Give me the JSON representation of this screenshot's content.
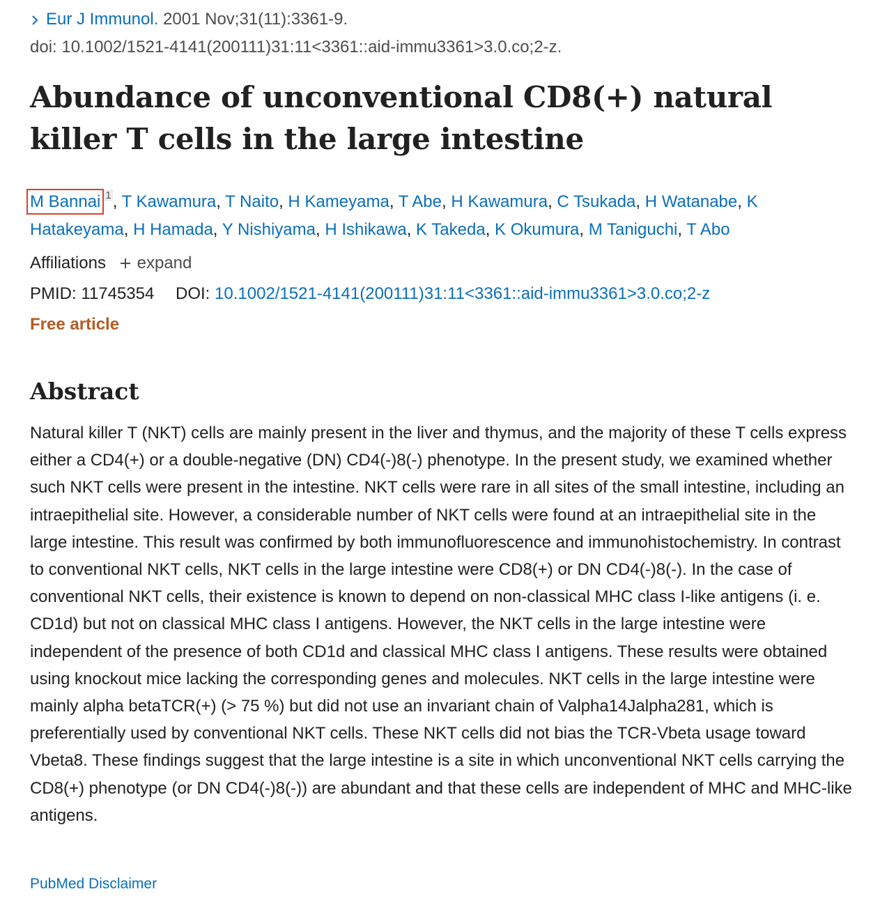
{
  "citation": {
    "journal": "Eur J Immunol.",
    "details": "2001 Nov;31(11):3361-9.",
    "doi_line": "doi: 10.1002/1521-4141(200111)31:11<3361::aid-immu3361>3.0.co;2-z."
  },
  "article_title": "Abundance of unconventional CD8(+) natural killer T cells in the large intestine",
  "authors": [
    {
      "name": "M Bannai",
      "affiliation_ref": "1"
    },
    {
      "name": "T Kawamura"
    },
    {
      "name": "T Naito"
    },
    {
      "name": "H Kameyama"
    },
    {
      "name": "T Abe"
    },
    {
      "name": "H Kawamura"
    },
    {
      "name": "C Tsukada"
    },
    {
      "name": "H Watanabe"
    },
    {
      "name": "K Hatakeyama"
    },
    {
      "name": "H Hamada"
    },
    {
      "name": "Y Nishiyama"
    },
    {
      "name": "H Ishikawa"
    },
    {
      "name": "K Takeda"
    },
    {
      "name": "K Okumura"
    },
    {
      "name": "M Taniguchi"
    },
    {
      "name": "T Abo"
    }
  ],
  "author_separator": ", ",
  "affiliations": {
    "label": "Affiliations",
    "expand_label": "expand"
  },
  "identifiers": {
    "pmid_label": "PMID:",
    "pmid": "11745354",
    "doi_label": "DOI:",
    "doi": "10.1002/1521-4141(200111)31:11<3361::aid-immu3361>3.0.co;2-z"
  },
  "free_article_label": "Free article",
  "abstract": {
    "heading": "Abstract",
    "text": "Natural killer T (NKT) cells are mainly present in the liver and thymus, and the majority of these T cells express either a CD4(+) or a double-negative (DN) CD4(-)8(-) phenotype. In the present study, we examined whether such NKT cells were present in the intestine. NKT cells were rare in all sites of the small intestine, including an intraepithelial site. However, a considerable number of NKT cells were found at an intraepithelial site in the large intestine. This result was confirmed by both immunofluorescence and immunohistochemistry. In contrast to conventional NKT cells, NKT cells in the large intestine were CD8(+) or DN CD4(-)8(-). In the case of conventional NKT cells, their existence is known to depend on non-classical MHC class I-like antigens (i. e. CD1d) but not on classical MHC class I antigens. However, the NKT cells in the large intestine were independent of the presence of both CD1d and classical MHC class I antigens. These results were obtained using knockout mice lacking the corresponding genes and molecules. NKT cells in the large intestine were mainly alpha betaTCR(+) (> 75 %) but did not use an invariant chain of Valpha14Jalpha281, which is preferentially used by conventional NKT cells. These NKT cells did not bias the TCR-Vbeta usage toward Vbeta8. These findings suggest that the large intestine is a site in which unconventional NKT cells carrying the CD8(+) phenotype (or DN CD4(-)8(-)) are abundant and that these cells are independent of MHC and MHC-like antigens."
  },
  "disclaimer_label": "PubMed Disclaimer",
  "colors": {
    "link": "#0b6fb8",
    "free_article": "#b35c22",
    "highlight_box": "#d9402b"
  }
}
